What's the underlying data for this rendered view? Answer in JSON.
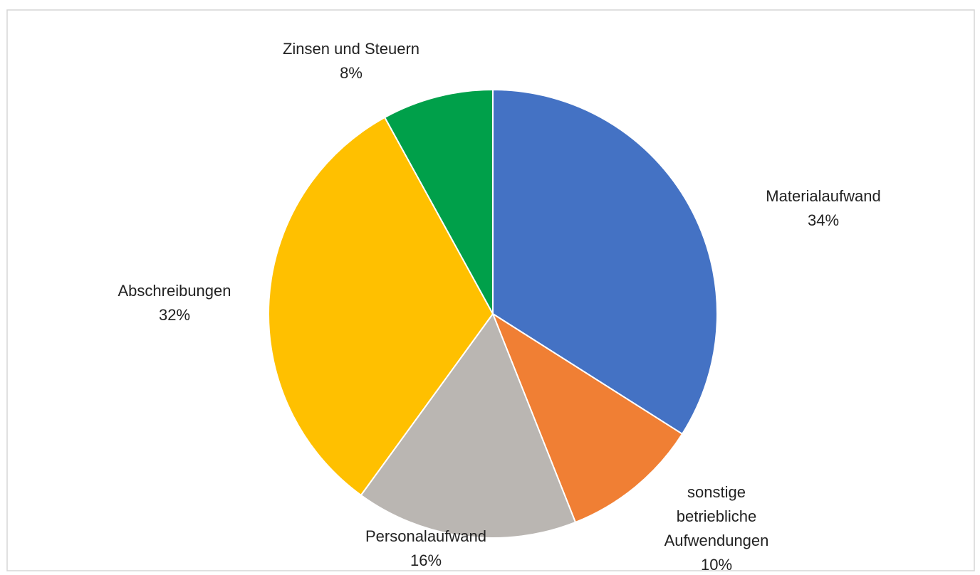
{
  "chart_data": {
    "type": "pie",
    "categories": [
      "Materialaufwand",
      "sonstige betriebliche Aufwendungen",
      "Personalaufwand",
      "Abschreibungen",
      "Zinsen und Steuern"
    ],
    "values": [
      34,
      10,
      16,
      32,
      8
    ],
    "value_labels": [
      "34%",
      "10%",
      "16%",
      "32%",
      "8%"
    ],
    "colors": [
      "#4472c4",
      "#f07f34",
      "#bab6b2",
      "#ffc000",
      "#00a04a"
    ]
  }
}
